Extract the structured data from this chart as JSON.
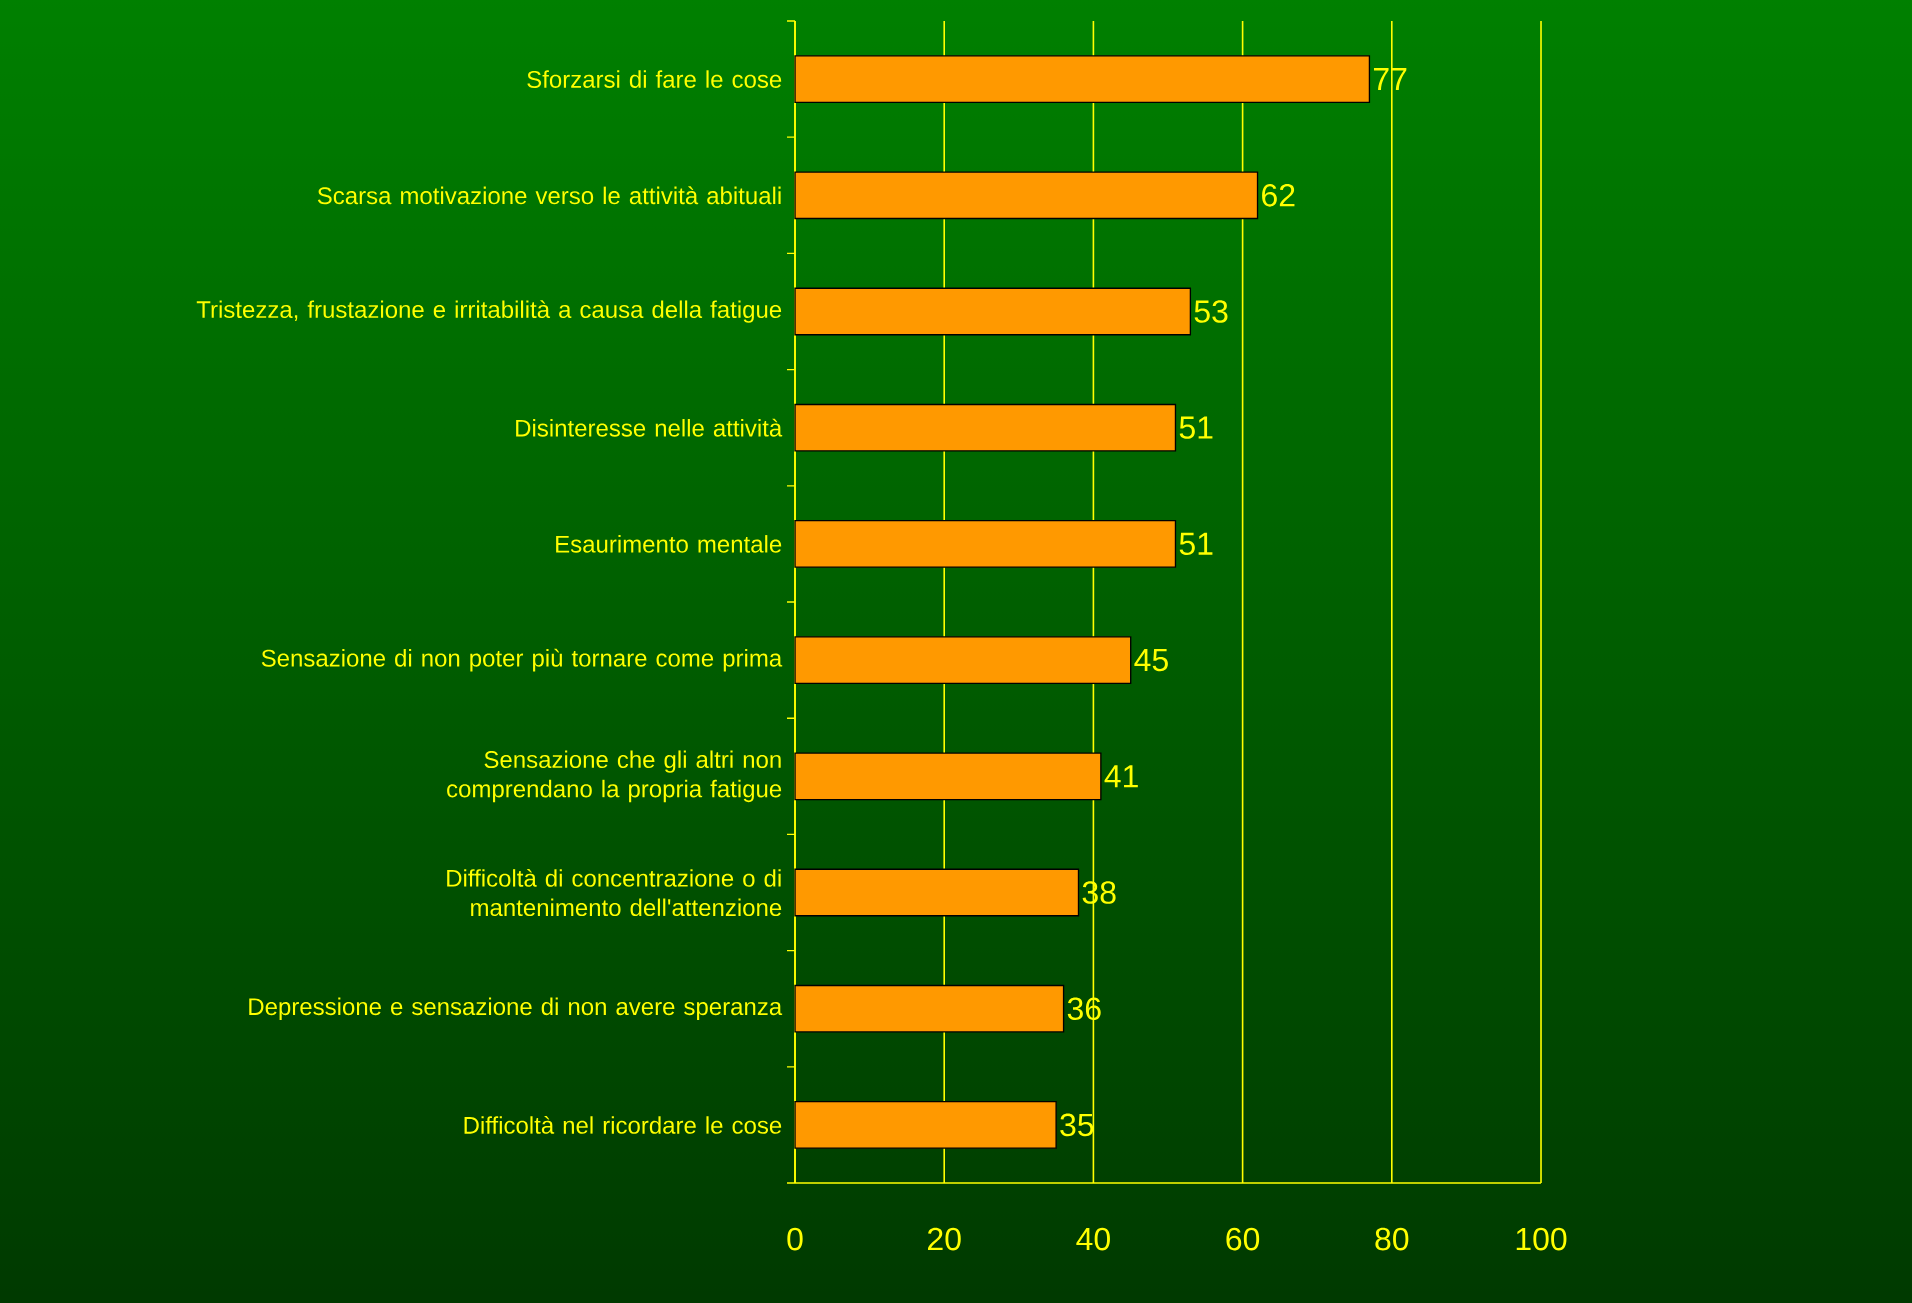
{
  "chart_data": {
    "type": "bar",
    "orientation": "horizontal",
    "categories": [
      "Sforzarsi di fare le cose",
      "Scarsa motivazione verso le attività abituali",
      "Tristezza, frustazione e irritabilità a causa della fatigue",
      "Disinteresse nelle attività",
      "Esaurimento  mentale",
      "Sensazione di non poter più tornare come prima",
      "Sensazione che gli altri non comprendano la propria fatigue",
      "Difficoltà di concentrazione o di mantenimento dell'attenzione",
      "Depressione e sensazione di non avere speranza",
      "Difficoltà nel ricordare le cose"
    ],
    "values": [
      77,
      62,
      53,
      51,
      51,
      45,
      41,
      38,
      36,
      35
    ],
    "color": "#ff9900",
    "xlim": [
      0,
      100
    ],
    "xticks": [
      0,
      20,
      40,
      60,
      80,
      100
    ],
    "grid": "x",
    "data_labels": true
  }
}
